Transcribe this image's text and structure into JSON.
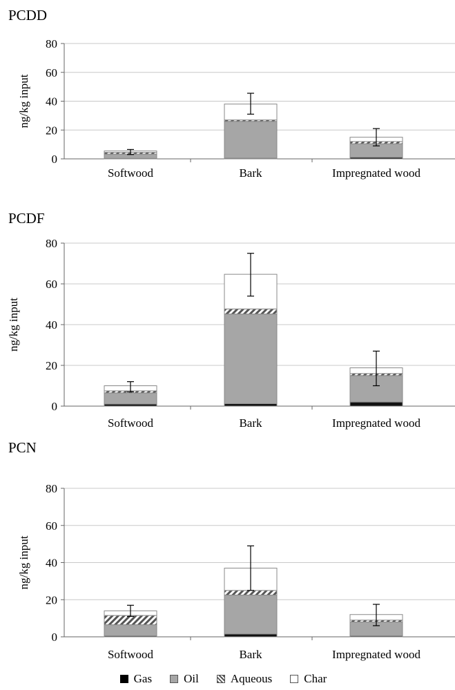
{
  "chart_data": [
    {
      "type": "bar",
      "stacked": true,
      "title": "PCDD",
      "ylabel": "ng/kg input",
      "ylim": [
        0,
        80
      ],
      "yticks": [
        0,
        20,
        40,
        60,
        80
      ],
      "categories": [
        "Softwood",
        "Bark",
        "Impregnated wood"
      ],
      "series": [
        {
          "name": "Gas",
          "values": [
            0.3,
            0.5,
            1.0
          ]
        },
        {
          "name": "Oil",
          "values": [
            3.0,
            25.5,
            9.5
          ]
        },
        {
          "name": "Aqueous",
          "values": [
            1.2,
            1.0,
            1.5
          ]
        },
        {
          "name": "Char",
          "values": [
            1.0,
            11.0,
            3.0
          ]
        }
      ],
      "error": {
        "top": [
          6.5,
          45.5,
          21.0
        ],
        "bottom": [
          3.0,
          31.0,
          9.0
        ]
      }
    },
    {
      "type": "bar",
      "stacked": true,
      "title": "PCDF",
      "ylabel": "ng/kg input",
      "ylim": [
        0,
        80
      ],
      "yticks": [
        0,
        20,
        40,
        60,
        80
      ],
      "categories": [
        "Softwood",
        "Bark",
        "Impregnated wood"
      ],
      "series": [
        {
          "name": "Gas",
          "values": [
            1.0,
            1.2,
            2.0
          ]
        },
        {
          "name": "Oil",
          "values": [
            5.5,
            44.0,
            13.0
          ]
        },
        {
          "name": "Aqueous",
          "values": [
            1.0,
            2.5,
            1.0
          ]
        },
        {
          "name": "Char",
          "values": [
            2.5,
            17.0,
            2.8
          ]
        }
      ],
      "error": {
        "top": [
          12.0,
          75.0,
          27.0
        ],
        "bottom": [
          7.0,
          54.0,
          10.0
        ]
      }
    },
    {
      "type": "bar",
      "stacked": true,
      "title": "PCN",
      "ylabel": "ng/kg input",
      "ylim": [
        0,
        80
      ],
      "yticks": [
        0,
        20,
        40,
        60,
        80
      ],
      "categories": [
        "Softwood",
        "Bark",
        "Impregnated wood"
      ],
      "series": [
        {
          "name": "Gas",
          "values": [
            0.5,
            1.5,
            0.5
          ]
        },
        {
          "name": "Oil",
          "values": [
            6.0,
            21.0,
            7.5
          ]
        },
        {
          "name": "Aqueous",
          "values": [
            5.0,
            2.5,
            1.0
          ]
        },
        {
          "name": "Char",
          "values": [
            2.5,
            12.0,
            3.0
          ]
        }
      ],
      "error": {
        "top": [
          17.0,
          49.0,
          17.5
        ],
        "bottom": [
          11.0,
          25.0,
          6.0
        ]
      }
    }
  ],
  "legend": [
    {
      "label": "Gas",
      "color": "#000000",
      "pattern": "solid"
    },
    {
      "label": "Oil",
      "color": "#a6a6a6",
      "pattern": "solid"
    },
    {
      "label": "Aqueous",
      "color": "#ffffff",
      "pattern": "hatch"
    },
    {
      "label": "Char",
      "color": "#ffffff",
      "pattern": "solid"
    }
  ]
}
